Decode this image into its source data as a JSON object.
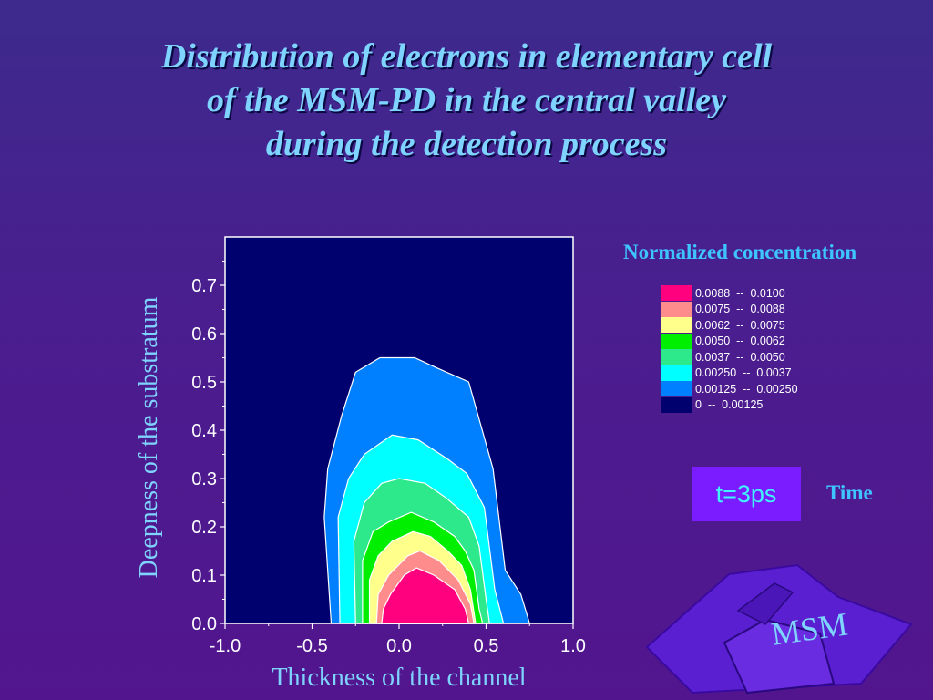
{
  "title": {
    "line1": "Distribution of electrons in elementary cell",
    "line2": "of the MSM-PD in the central valley",
    "line3": "during the detection process"
  },
  "chart_data": {
    "type": "contour",
    "xlabel": "Thickness of the channel",
    "ylabel": "Deepness of the substratum",
    "xlim": [
      -1.0,
      1.0
    ],
    "ylim": [
      0.0,
      0.8
    ],
    "x_ticks": [
      "-1.0",
      "-0.5",
      "0.0",
      "0.5",
      "1.0"
    ],
    "y_ticks": [
      "0.0",
      "0.1",
      "0.2",
      "0.3",
      "0.4",
      "0.5",
      "0.6",
      "0.7"
    ],
    "background_color": "#00006e",
    "levels": [
      {
        "label": "0.0088  --  0.0100",
        "color": "#ff007f"
      },
      {
        "label": "0.0075  --  0.0088",
        "color": "#ff8c8c"
      },
      {
        "label": "0.0062  --  0.0075",
        "color": "#ffff8c"
      },
      {
        "label": "0.0050  --  0.0062",
        "color": "#00ee00"
      },
      {
        "label": "0.0037  --  0.0050",
        "color": "#2ee88c"
      },
      {
        "label": "0.00250  --  0.0037",
        "color": "#00ffff"
      },
      {
        "label": "0.00125  --  0.00250",
        "color": "#0080ff"
      },
      {
        "label": "0  --  0.00125",
        "color": "#00006e"
      }
    ],
    "regions": [
      {
        "name": "0.00125 - 0.00250",
        "color": "#0080ff",
        "points": [
          [
            -0.39,
            0
          ],
          [
            -0.43,
            0.22
          ],
          [
            -0.41,
            0.32
          ],
          [
            -0.33,
            0.43
          ],
          [
            -0.25,
            0.52
          ],
          [
            -0.11,
            0.55
          ],
          [
            0.09,
            0.55
          ],
          [
            0.21,
            0.53
          ],
          [
            0.4,
            0.5
          ],
          [
            0.54,
            0.32
          ],
          [
            0.61,
            0.11
          ],
          [
            0.7,
            0.06
          ],
          [
            0.75,
            0
          ]
        ]
      },
      {
        "name": "0.00250 - 0.0037",
        "color": "#00ffff",
        "points": [
          [
            -0.34,
            0
          ],
          [
            -0.35,
            0.22
          ],
          [
            -0.29,
            0.3
          ],
          [
            -0.2,
            0.35
          ],
          [
            -0.04,
            0.39
          ],
          [
            0.11,
            0.38
          ],
          [
            0.28,
            0.34
          ],
          [
            0.39,
            0.31
          ],
          [
            0.49,
            0.24
          ],
          [
            0.55,
            0.07
          ],
          [
            0.6,
            0
          ]
        ]
      },
      {
        "name": "0.0037 - 0.0050",
        "color": "#2ee88c",
        "points": [
          [
            -0.25,
            0
          ],
          [
            -0.26,
            0.17
          ],
          [
            -0.2,
            0.25
          ],
          [
            -0.1,
            0.29
          ],
          [
            0.0,
            0.3
          ],
          [
            0.15,
            0.29
          ],
          [
            0.27,
            0.26
          ],
          [
            0.4,
            0.22
          ],
          [
            0.46,
            0.16
          ],
          [
            0.5,
            0.05
          ],
          [
            0.52,
            0
          ]
        ]
      },
      {
        "name": "0.0050 - 0.0062",
        "color": "#00ee00",
        "points": [
          [
            -0.21,
            0
          ],
          [
            -0.21,
            0.13
          ],
          [
            -0.15,
            0.19
          ],
          [
            -0.06,
            0.21
          ],
          [
            0.07,
            0.23
          ],
          [
            0.2,
            0.21
          ],
          [
            0.32,
            0.18
          ],
          [
            0.38,
            0.15
          ],
          [
            0.43,
            0.11
          ],
          [
            0.46,
            0.03
          ],
          [
            0.48,
            0
          ]
        ]
      },
      {
        "name": "0.0062 - 0.0075",
        "color": "#ffff8c",
        "points": [
          [
            -0.17,
            0
          ],
          [
            -0.17,
            0.09
          ],
          [
            -0.12,
            0.14
          ],
          [
            -0.04,
            0.17
          ],
          [
            0.08,
            0.19
          ],
          [
            0.18,
            0.18
          ],
          [
            0.28,
            0.15
          ],
          [
            0.36,
            0.12
          ],
          [
            0.41,
            0.07
          ],
          [
            0.44,
            0
          ]
        ]
      },
      {
        "name": "0.0075 - 0.0088",
        "color": "#ff8c8c",
        "points": [
          [
            -0.13,
            0
          ],
          [
            -0.12,
            0.06
          ],
          [
            -0.06,
            0.1
          ],
          [
            0.05,
            0.14
          ],
          [
            0.12,
            0.15
          ],
          [
            0.23,
            0.13
          ],
          [
            0.34,
            0.09
          ],
          [
            0.41,
            0.04
          ],
          [
            0.43,
            0
          ]
        ]
      },
      {
        "name": "0.0088 - 0.0100",
        "color": "#ff007f",
        "points": [
          [
            -0.1,
            0
          ],
          [
            -0.09,
            0.03
          ],
          [
            -0.05,
            0.06
          ],
          [
            0.03,
            0.1
          ],
          [
            0.1,
            0.115
          ],
          [
            0.2,
            0.1
          ],
          [
            0.32,
            0.07
          ],
          [
            0.38,
            0.03
          ],
          [
            0.4,
            0
          ]
        ]
      }
    ]
  },
  "legend": {
    "title": "Normalized concentration"
  },
  "time": {
    "value": "t=3ps",
    "label": "Time"
  },
  "logo": {
    "text": "MSM"
  }
}
